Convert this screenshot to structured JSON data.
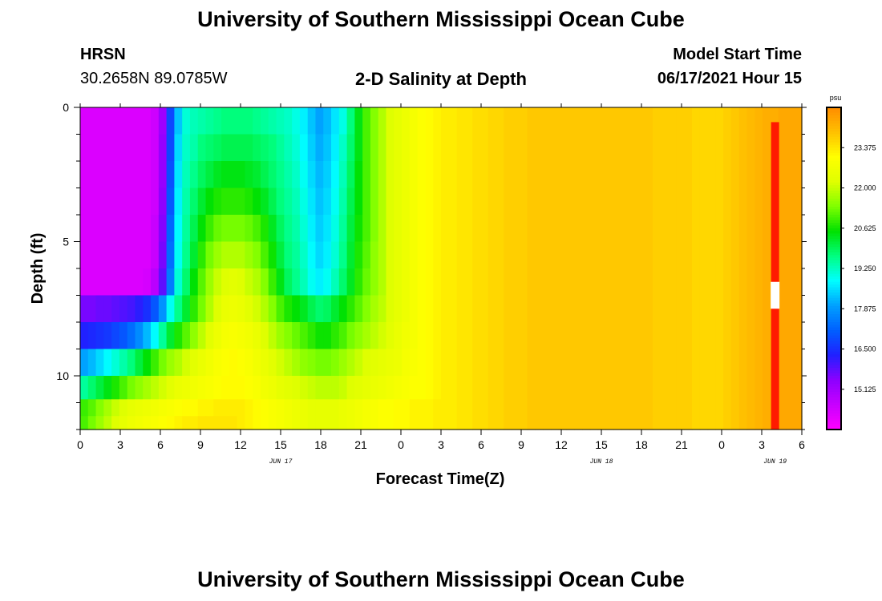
{
  "header": {
    "title_top": "University of Southern Mississippi Ocean Cube",
    "title_bottom": "University of Southern Mississippi Ocean Cube",
    "station": "HRSN",
    "coordinates": "30.2658N  89.0785W",
    "model_start_label": "Model Start Time",
    "model_start_value": "06/17/2021 Hour 15"
  },
  "chart_data": {
    "type": "heatmap",
    "title": "2-D Salinity at Depth",
    "xlabel": "Forecast Time(Z)",
    "ylabel": "Depth (ft)",
    "x_tick_labels": [
      "0",
      "3",
      "6",
      "9",
      "12",
      "15",
      "18",
      "21",
      "0",
      "3",
      "6",
      "9",
      "12",
      "15",
      "18",
      "21",
      "0",
      "3",
      "6"
    ],
    "date_labels": [
      "JUN 17",
      "JUN 18",
      "JUN 19"
    ],
    "y_tick_labels": [
      "0",
      "5",
      "10"
    ],
    "ylim": [
      0,
      12
    ],
    "y_inverted": true,
    "colorbar": {
      "unit": "psu",
      "tick_labels": [
        "23.375",
        "22.000",
        "20.625",
        "19.250",
        "17.875",
        "16.500",
        "15.125"
      ],
      "range": [
        13.75,
        24.75
      ]
    },
    "colormap": [
      "#ff00ff",
      "#c800ff",
      "#8c00ff",
      "#2020ff",
      "#0060ff",
      "#00a0ff",
      "#00ffff",
      "#00ff80",
      "#00e000",
      "#80ff00",
      "#e0ff00",
      "#ffff00",
      "#ffc000",
      "#ff8c00"
    ],
    "anomaly_colors": {
      "red": "#ff1a00",
      "white": "#ffffff"
    },
    "time_hours": [
      0,
      54
    ],
    "layer_depths": [
      0.5,
      1.5,
      2.5,
      3.5,
      4.5,
      5.5,
      6.5,
      7.5,
      8.5,
      9.5,
      10.5,
      11.25,
      11.75
    ],
    "salinity_grid": [
      [
        14.3,
        14.3,
        14.3,
        14.3,
        14.3,
        14.3,
        14.3,
        14.3,
        14.3,
        14.5,
        15.2,
        16.8,
        18.3,
        19.1,
        19.3,
        19.4,
        19.5,
        19.6,
        19.7,
        19.7,
        19.7,
        19.7,
        19.6,
        19.5,
        19.4,
        19.3,
        19.2,
        19.0,
        18.7,
        18.3,
        18.0,
        18.2,
        18.6,
        19.0,
        19.7,
        20.4,
        21.0,
        21.4,
        21.8,
        22.2,
        22.4,
        22.6,
        22.8,
        23.0,
        23.1,
        23.2,
        23.3,
        23.3,
        23.4,
        23.4,
        23.5,
        23.5,
        23.6,
        23.6,
        23.7,
        23.7,
        23.7,
        23.8,
        23.8,
        23.8,
        23.8,
        23.8,
        23.8,
        23.8,
        23.8,
        23.8,
        23.8,
        23.8,
        23.8,
        23.8,
        23.8,
        23.8,
        23.8,
        23.7,
        23.7,
        23.7,
        23.7,
        23.7,
        23.6,
        23.6,
        23.6,
        23.6,
        23.7,
        23.8,
        23.9,
        24.0,
        24.1,
        24.2,
        24.2,
        24.3,
        24.3,
        24.3
      ],
      [
        14.3,
        14.3,
        14.3,
        14.3,
        14.3,
        14.3,
        14.3,
        14.3,
        14.3,
        14.5,
        15.3,
        16.8,
        18.5,
        19.2,
        19.4,
        19.7,
        19.8,
        19.9,
        20.0,
        20.0,
        20.0,
        20.0,
        19.9,
        19.8,
        19.7,
        19.5,
        19.3,
        19.1,
        18.8,
        18.4,
        18.1,
        18.3,
        18.7,
        19.2,
        19.8,
        20.4,
        21.0,
        21.4,
        21.8,
        22.2,
        22.4,
        22.6,
        22.8,
        23.0,
        23.1,
        23.2,
        23.3,
        23.3,
        23.4,
        23.4,
        23.5,
        23.5,
        23.6,
        23.6,
        23.7,
        23.7,
        23.7,
        23.8,
        23.8,
        23.8,
        23.8,
        23.8,
        23.8,
        23.8,
        23.8,
        23.8,
        23.8,
        23.8,
        23.8,
        23.8,
        23.8,
        23.8,
        23.8,
        23.7,
        23.7,
        23.7,
        23.7,
        23.7,
        23.6,
        23.6,
        23.6,
        23.6,
        23.7,
        23.8,
        23.9,
        24.0,
        24.1,
        24.2,
        24.2,
        24.3,
        24.3,
        24.3
      ],
      [
        14.3,
        14.3,
        14.3,
        14.3,
        14.3,
        14.3,
        14.3,
        14.3,
        14.3,
        14.5,
        15.3,
        16.9,
        18.6,
        19.3,
        19.6,
        19.9,
        20.1,
        20.3,
        20.4,
        20.4,
        20.4,
        20.3,
        20.2,
        20.0,
        19.8,
        19.6,
        19.4,
        19.2,
        18.9,
        18.5,
        18.2,
        18.4,
        18.8,
        19.3,
        19.9,
        20.5,
        21.0,
        21.4,
        21.8,
        22.2,
        22.4,
        22.6,
        22.8,
        23.0,
        23.1,
        23.2,
        23.3,
        23.3,
        23.4,
        23.4,
        23.5,
        23.5,
        23.6,
        23.6,
        23.7,
        23.7,
        23.7,
        23.8,
        23.8,
        23.8,
        23.8,
        23.8,
        23.8,
        23.8,
        23.8,
        23.8,
        23.8,
        23.8,
        23.8,
        23.8,
        23.8,
        23.8,
        23.8,
        23.7,
        23.7,
        23.7,
        23.7,
        23.7,
        23.6,
        23.6,
        23.6,
        23.6,
        23.7,
        23.8,
        23.9,
        24.0,
        24.1,
        24.2,
        24.2,
        24.3,
        24.3,
        24.3
      ],
      [
        14.3,
        14.3,
        14.3,
        14.3,
        14.3,
        14.3,
        14.3,
        14.3,
        14.3,
        14.5,
        15.4,
        17.0,
        18.7,
        19.4,
        19.8,
        20.2,
        20.5,
        20.7,
        20.8,
        20.8,
        20.8,
        20.7,
        20.5,
        20.3,
        20.0,
        19.7,
        19.5,
        19.3,
        19.0,
        18.6,
        18.3,
        18.5,
        18.9,
        19.4,
        20.0,
        20.5,
        21.0,
        21.4,
        21.8,
        22.2,
        22.4,
        22.6,
        22.8,
        23.0,
        23.1,
        23.2,
        23.3,
        23.3,
        23.4,
        23.4,
        23.5,
        23.5,
        23.6,
        23.6,
        23.7,
        23.7,
        23.7,
        23.8,
        23.8,
        23.8,
        23.8,
        23.8,
        23.8,
        23.8,
        23.8,
        23.8,
        23.8,
        23.8,
        23.8,
        23.8,
        23.8,
        23.8,
        23.8,
        23.7,
        23.7,
        23.7,
        23.7,
        23.7,
        23.6,
        23.6,
        23.6,
        23.6,
        23.7,
        23.8,
        23.9,
        24.0,
        24.1,
        24.2,
        24.2,
        24.3,
        24.3,
        24.3
      ],
      [
        14.3,
        14.3,
        14.3,
        14.3,
        14.3,
        14.3,
        14.3,
        14.3,
        14.3,
        14.6,
        15.5,
        17.2,
        18.8,
        19.5,
        20.0,
        20.5,
        20.9,
        21.2,
        21.3,
        21.3,
        21.3,
        21.2,
        21.0,
        20.7,
        20.3,
        19.9,
        19.6,
        19.4,
        19.1,
        18.7,
        18.4,
        18.6,
        19.0,
        19.5,
        20.1,
        20.6,
        21.0,
        21.4,
        21.8,
        22.2,
        22.4,
        22.6,
        22.8,
        23.0,
        23.1,
        23.2,
        23.3,
        23.3,
        23.4,
        23.4,
        23.5,
        23.5,
        23.6,
        23.6,
        23.7,
        23.7,
        23.7,
        23.8,
        23.8,
        23.8,
        23.8,
        23.8,
        23.8,
        23.8,
        23.8,
        23.8,
        23.8,
        23.8,
        23.8,
        23.8,
        23.8,
        23.8,
        23.8,
        23.7,
        23.7,
        23.7,
        23.7,
        23.7,
        23.6,
        23.6,
        23.6,
        23.6,
        23.7,
        23.8,
        23.9,
        24.0,
        24.1,
        24.2,
        24.2,
        24.3,
        24.3,
        24.3
      ],
      [
        14.3,
        14.3,
        14.3,
        14.3,
        14.3,
        14.3,
        14.3,
        14.3,
        14.3,
        14.6,
        15.6,
        17.3,
        18.9,
        19.6,
        20.2,
        20.8,
        21.3,
        21.6,
        21.8,
        21.8,
        21.8,
        21.6,
        21.4,
        21.0,
        20.6,
        20.1,
        19.7,
        19.5,
        19.2,
        18.8,
        18.5,
        18.7,
        19.1,
        19.6,
        20.2,
        20.7,
        21.1,
        21.5,
        21.8,
        22.2,
        22.4,
        22.6,
        22.8,
        23.0,
        23.1,
        23.2,
        23.3,
        23.3,
        23.4,
        23.4,
        23.5,
        23.5,
        23.6,
        23.6,
        23.7,
        23.7,
        23.7,
        23.8,
        23.8,
        23.8,
        23.8,
        23.8,
        23.8,
        23.8,
        23.8,
        23.8,
        23.8,
        23.8,
        23.8,
        23.8,
        23.8,
        23.8,
        23.8,
        23.7,
        23.7,
        23.7,
        23.7,
        23.7,
        23.6,
        23.6,
        23.6,
        23.6,
        23.7,
        23.8,
        23.9,
        24.0,
        24.1,
        24.2,
        24.2,
        24.3,
        24.3,
        24.3
      ],
      [
        14.3,
        14.3,
        14.3,
        14.3,
        14.3,
        14.3,
        14.3,
        14.3,
        14.4,
        14.8,
        15.8,
        17.5,
        19.1,
        19.8,
        20.5,
        21.1,
        21.6,
        22.0,
        22.2,
        22.3,
        22.2,
        22.0,
        21.8,
        21.4,
        20.9,
        20.4,
        19.9,
        19.6,
        19.3,
        18.9,
        18.7,
        18.9,
        19.3,
        19.8,
        20.3,
        20.8,
        21.2,
        21.5,
        21.8,
        22.2,
        22.4,
        22.6,
        22.8,
        23.0,
        23.1,
        23.2,
        23.3,
        23.3,
        23.4,
        23.4,
        23.5,
        23.5,
        23.6,
        23.6,
        23.7,
        23.7,
        23.7,
        23.8,
        23.8,
        23.8,
        23.8,
        23.8,
        23.8,
        23.8,
        23.8,
        23.8,
        23.8,
        23.8,
        23.8,
        23.8,
        23.8,
        23.8,
        23.8,
        23.7,
        23.7,
        23.7,
        23.7,
        23.7,
        23.6,
        23.6,
        23.6,
        23.6,
        23.7,
        23.8,
        23.9,
        24.0,
        24.1,
        24.2,
        24.2,
        24.3,
        24.3,
        24.3
      ],
      [
        15.6,
        15.6,
        15.7,
        15.7,
        15.8,
        15.9,
        16.0,
        16.2,
        16.5,
        17.0,
        17.8,
        18.9,
        19.6,
        20.2,
        20.8,
        21.3,
        21.8,
        22.2,
        22.5,
        22.6,
        22.5,
        22.3,
        22.1,
        21.8,
        21.4,
        21.0,
        20.7,
        20.5,
        20.3,
        20.0,
        19.8,
        19.9,
        20.2,
        20.5,
        20.8,
        21.1,
        21.4,
        21.7,
        21.9,
        22.2,
        22.4,
        22.6,
        22.8,
        23.0,
        23.1,
        23.2,
        23.3,
        23.3,
        23.4,
        23.4,
        23.5,
        23.5,
        23.6,
        23.6,
        23.7,
        23.7,
        23.7,
        23.8,
        23.8,
        23.8,
        23.8,
        23.8,
        23.8,
        23.8,
        23.8,
        23.8,
        23.8,
        23.8,
        23.8,
        23.8,
        23.8,
        23.8,
        23.8,
        23.7,
        23.7,
        23.7,
        23.7,
        23.7,
        23.6,
        23.6,
        23.6,
        23.6,
        23.7,
        23.8,
        23.9,
        24.0,
        24.1,
        24.2,
        24.2,
        24.3,
        24.3,
        24.3
      ],
      [
        16.3,
        16.4,
        16.5,
        16.6,
        16.8,
        17.0,
        17.3,
        17.7,
        18.2,
        18.8,
        19.5,
        20.2,
        20.7,
        21.1,
        21.5,
        21.9,
        22.3,
        22.6,
        22.8,
        22.9,
        22.8,
        22.7,
        22.5,
        22.2,
        21.9,
        21.6,
        21.4,
        21.2,
        21.0,
        20.8,
        20.6,
        20.6,
        20.8,
        21.0,
        21.3,
        21.5,
        21.7,
        21.9,
        22.1,
        22.3,
        22.5,
        22.7,
        22.8,
        23.0,
        23.1,
        23.2,
        23.3,
        23.3,
        23.4,
        23.4,
        23.5,
        23.5,
        23.6,
        23.6,
        23.7,
        23.7,
        23.7,
        23.8,
        23.8,
        23.8,
        23.8,
        23.8,
        23.8,
        23.8,
        23.8,
        23.8,
        23.8,
        23.8,
        23.8,
        23.8,
        23.8,
        23.8,
        23.8,
        23.7,
        23.7,
        23.7,
        23.7,
        23.7,
        23.6,
        23.6,
        23.6,
        23.6,
        23.7,
        23.8,
        23.9,
        24.0,
        24.1,
        24.2,
        24.2,
        24.3,
        24.3,
        24.3
      ],
      [
        18.0,
        18.2,
        18.5,
        18.8,
        19.1,
        19.4,
        19.7,
        20.1,
        20.5,
        20.9,
        21.3,
        21.6,
        21.8,
        22.1,
        22.3,
        22.5,
        22.7,
        22.9,
        23.0,
        23.1,
        23.0,
        22.9,
        22.7,
        22.5,
        22.3,
        22.1,
        21.9,
        21.7,
        21.5,
        21.4,
        21.3,
        21.3,
        21.4,
        21.6,
        21.8,
        22.0,
        22.2,
        22.3,
        22.4,
        22.5,
        22.6,
        22.8,
        22.9,
        23.0,
        23.1,
        23.2,
        23.3,
        23.3,
        23.4,
        23.4,
        23.5,
        23.5,
        23.6,
        23.6,
        23.7,
        23.7,
        23.7,
        23.8,
        23.8,
        23.8,
        23.8,
        23.8,
        23.8,
        23.8,
        23.8,
        23.8,
        23.8,
        23.8,
        23.8,
        23.8,
        23.8,
        23.8,
        23.8,
        23.7,
        23.7,
        23.7,
        23.7,
        23.7,
        23.6,
        23.6,
        23.6,
        23.6,
        23.7,
        23.8,
        23.9,
        24.0,
        24.1,
        24.2,
        24.2,
        24.3,
        24.3,
        24.3
      ],
      [
        19.5,
        19.8,
        20.1,
        20.4,
        20.7,
        21.0,
        21.3,
        21.5,
        21.7,
        21.9,
        22.1,
        22.3,
        22.5,
        22.6,
        22.7,
        22.8,
        22.9,
        23.0,
        23.1,
        23.1,
        23.1,
        23.0,
        22.9,
        22.7,
        22.6,
        22.4,
        22.3,
        22.2,
        22.1,
        22.0,
        21.9,
        21.9,
        21.9,
        22.0,
        22.2,
        22.3,
        22.4,
        22.5,
        22.6,
        22.7,
        22.8,
        22.9,
        23.0,
        23.0,
        23.1,
        23.2,
        23.3,
        23.3,
        23.4,
        23.4,
        23.5,
        23.5,
        23.6,
        23.6,
        23.7,
        23.7,
        23.7,
        23.8,
        23.8,
        23.8,
        23.8,
        23.8,
        23.8,
        23.8,
        23.8,
        23.8,
        23.8,
        23.8,
        23.8,
        23.8,
        23.8,
        23.8,
        23.8,
        23.7,
        23.7,
        23.7,
        23.7,
        23.7,
        23.6,
        23.6,
        23.6,
        23.6,
        23.7,
        23.8,
        23.9,
        24.0,
        24.1,
        24.2,
        24.2,
        24.3,
        24.3,
        24.3
      ],
      [
        20.9,
        21.1,
        21.4,
        21.7,
        22.0,
        22.2,
        22.4,
        22.5,
        22.6,
        22.7,
        22.8,
        22.9,
        23.0,
        23.1,
        23.1,
        23.2,
        23.2,
        23.3,
        23.3,
        23.3,
        23.3,
        23.2,
        23.1,
        23.0,
        22.9,
        22.8,
        22.7,
        22.6,
        22.5,
        22.4,
        22.4,
        22.4,
        22.4,
        22.5,
        22.6,
        22.7,
        22.8,
        22.9,
        23.0,
        23.0,
        23.1,
        23.1,
        23.2,
        23.2,
        23.2,
        23.3,
        23.3,
        23.3,
        23.4,
        23.4,
        23.5,
        23.5,
        23.6,
        23.6,
        23.7,
        23.7,
        23.7,
        23.8,
        23.8,
        23.8,
        23.8,
        23.8,
        23.8,
        23.8,
        23.8,
        23.8,
        23.8,
        23.8,
        23.8,
        23.8,
        23.8,
        23.8,
        23.8,
        23.7,
        23.7,
        23.7,
        23.7,
        23.7,
        23.6,
        23.6,
        23.6,
        23.6,
        23.7,
        23.8,
        23.9,
        24.0,
        24.1,
        24.2,
        24.2,
        24.3,
        24.3,
        24.3
      ],
      [
        21.0,
        21.3,
        21.6,
        21.9,
        22.2,
        22.4,
        22.6,
        22.7,
        22.8,
        22.9,
        23.0,
        23.1,
        23.2,
        23.3,
        23.3,
        23.4,
        23.4,
        23.4,
        23.4,
        23.4,
        23.3,
        23.2,
        23.1,
        23.0,
        22.9,
        22.8,
        22.7,
        22.6,
        22.5,
        22.4,
        22.4,
        22.4,
        22.4,
        22.5,
        22.6,
        22.7,
        22.8,
        22.9,
        23.0,
        23.0,
        23.1,
        23.1,
        23.2,
        23.2,
        23.2,
        23.3,
        23.3,
        23.3,
        23.4,
        23.4,
        23.5,
        23.5,
        23.6,
        23.6,
        23.7,
        23.7,
        23.7,
        23.8,
        23.8,
        23.8,
        23.8,
        23.8,
        23.8,
        23.8,
        23.8,
        23.8,
        23.8,
        23.8,
        23.8,
        23.8,
        23.8,
        23.8,
        23.8,
        23.7,
        23.7,
        23.7,
        23.7,
        23.7,
        23.6,
        23.6,
        23.6,
        23.6,
        23.7,
        23.8,
        23.9,
        24.0,
        24.1,
        24.2,
        24.2,
        24.3,
        24.3,
        24.3
      ]
    ]
  }
}
